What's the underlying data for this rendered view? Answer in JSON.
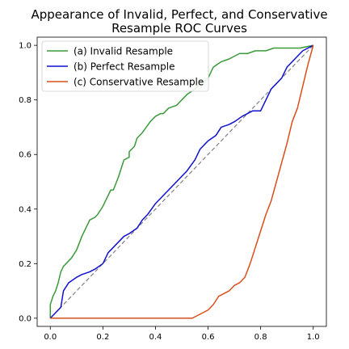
{
  "chart_data": {
    "type": "line",
    "title_lines": [
      "Appearance of Invalid, Perfect, and Conservative",
      "Resample ROC Curves"
    ],
    "xlabel": "",
    "ylabel": "",
    "xlim": [
      -0.05,
      1.05
    ],
    "ylim": [
      -0.03,
      1.03
    ],
    "x_ticks": [
      0.0,
      0.2,
      0.4,
      0.6,
      0.8,
      1.0
    ],
    "x_tick_labels": [
      "0.0",
      "0.2",
      "0.4",
      "0.6",
      "0.8",
      "1.0"
    ],
    "y_ticks": [
      0.0,
      0.2,
      0.4,
      0.6,
      0.8,
      1.0
    ],
    "y_tick_labels": [
      "0.0",
      "0.2",
      "0.4",
      "0.6",
      "0.8",
      "1.0"
    ],
    "grid": false,
    "legend_position": "top-left",
    "reference_line": {
      "x": [
        0,
        1
      ],
      "y": [
        0,
        1
      ],
      "color": "#808080",
      "style": "dashed"
    },
    "series": [
      {
        "name": "(a) Invalid Resample",
        "color": "#3a9a3a",
        "x": [
          0.0,
          0.0,
          0.01,
          0.02,
          0.03,
          0.04,
          0.05,
          0.06,
          0.08,
          0.1,
          0.12,
          0.14,
          0.15,
          0.17,
          0.18,
          0.2,
          0.22,
          0.23,
          0.24,
          0.26,
          0.28,
          0.3,
          0.3,
          0.32,
          0.33,
          0.35,
          0.38,
          0.4,
          0.42,
          0.43,
          0.45,
          0.48,
          0.5,
          0.52,
          0.55,
          0.57,
          0.58,
          0.6,
          0.62,
          0.65,
          0.68,
          0.7,
          0.72,
          0.75,
          0.78,
          0.8,
          0.82,
          0.85,
          0.9,
          0.92,
          0.95,
          1.0
        ],
        "y": [
          0.0,
          0.05,
          0.08,
          0.1,
          0.13,
          0.17,
          0.19,
          0.2,
          0.22,
          0.25,
          0.3,
          0.34,
          0.36,
          0.37,
          0.38,
          0.41,
          0.45,
          0.47,
          0.47,
          0.52,
          0.58,
          0.59,
          0.61,
          0.63,
          0.66,
          0.68,
          0.72,
          0.74,
          0.75,
          0.75,
          0.77,
          0.78,
          0.8,
          0.82,
          0.84,
          0.86,
          0.86,
          0.88,
          0.92,
          0.94,
          0.95,
          0.96,
          0.97,
          0.97,
          0.98,
          0.98,
          0.98,
          0.99,
          0.99,
          0.99,
          0.99,
          1.0
        ]
      },
      {
        "name": "(b) Perfect Resample",
        "color": "#1010d0",
        "x": [
          0.0,
          0.02,
          0.04,
          0.05,
          0.07,
          0.1,
          0.12,
          0.15,
          0.17,
          0.2,
          0.22,
          0.25,
          0.28,
          0.3,
          0.33,
          0.35,
          0.37,
          0.4,
          0.43,
          0.45,
          0.48,
          0.5,
          0.52,
          0.55,
          0.57,
          0.6,
          0.63,
          0.65,
          0.68,
          0.7,
          0.73,
          0.75,
          0.77,
          0.8,
          0.82,
          0.84,
          0.86,
          0.88,
          0.9,
          0.92,
          0.94,
          0.96,
          0.98,
          1.0
        ],
        "y": [
          0.0,
          0.02,
          0.04,
          0.1,
          0.13,
          0.15,
          0.16,
          0.17,
          0.18,
          0.2,
          0.24,
          0.27,
          0.3,
          0.31,
          0.33,
          0.36,
          0.38,
          0.42,
          0.45,
          0.47,
          0.5,
          0.52,
          0.54,
          0.58,
          0.62,
          0.65,
          0.67,
          0.7,
          0.71,
          0.72,
          0.74,
          0.75,
          0.76,
          0.76,
          0.8,
          0.84,
          0.86,
          0.88,
          0.92,
          0.94,
          0.96,
          0.98,
          0.99,
          1.0
        ]
      },
      {
        "name": "(c) Conservative Resample",
        "color": "#d94f1c",
        "x": [
          0.0,
          0.1,
          0.2,
          0.3,
          0.4,
          0.5,
          0.54,
          0.56,
          0.58,
          0.6,
          0.62,
          0.64,
          0.66,
          0.68,
          0.7,
          0.72,
          0.74,
          0.76,
          0.78,
          0.8,
          0.82,
          0.84,
          0.86,
          0.88,
          0.9,
          0.92,
          0.94,
          0.96,
          0.98,
          1.0
        ],
        "y": [
          0.0,
          0.0,
          0.0,
          0.0,
          0.0,
          0.0,
          0.0,
          0.01,
          0.02,
          0.03,
          0.05,
          0.08,
          0.09,
          0.1,
          0.12,
          0.13,
          0.15,
          0.2,
          0.26,
          0.32,
          0.38,
          0.43,
          0.5,
          0.57,
          0.64,
          0.72,
          0.77,
          0.85,
          0.93,
          1.0
        ]
      }
    ]
  }
}
